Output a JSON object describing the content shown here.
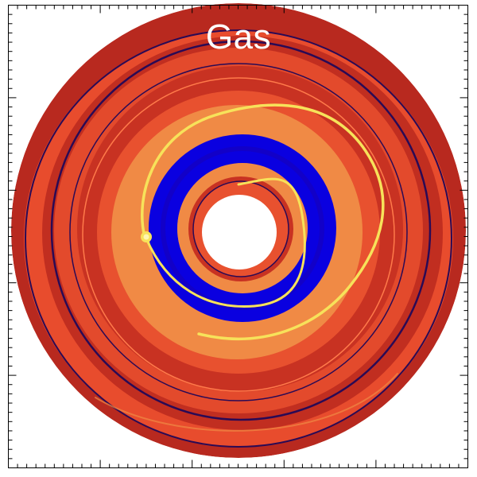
{
  "figure": {
    "title": "Gas",
    "colors": {
      "background": "#ffffff",
      "frame": "#000000",
      "disk_base": "#b8291f",
      "disk_light": "#e84c2d",
      "disk_orange": "#f08a45",
      "ring_blue": "#0a00e0",
      "ring_dark": "#1a0a6a",
      "spiral_yellow": "#f7e25a",
      "spiral_hot": "#fff6b0",
      "hole": "#ffffff"
    },
    "elements": [
      "density-disk",
      "inner-hole",
      "gap-ring",
      "spiral-arm",
      "planet-hotspot",
      "dark-ring-lanes"
    ]
  }
}
